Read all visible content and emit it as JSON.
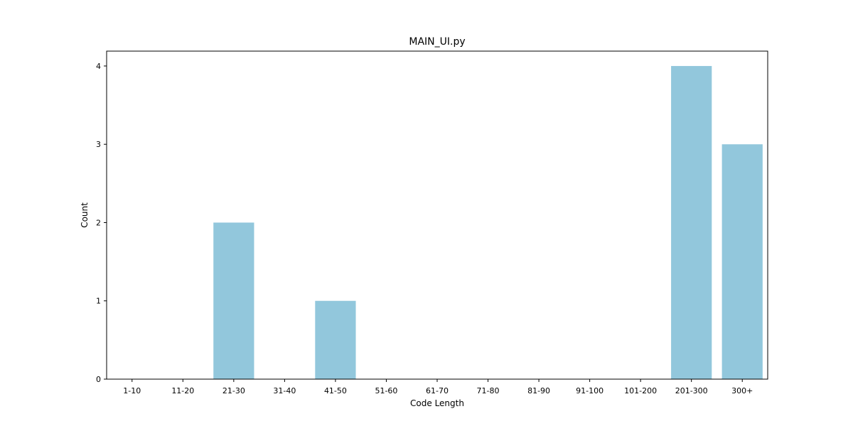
{
  "chart_data": {
    "type": "bar",
    "title": "MAIN_UI.py",
    "xlabel": "Code Length",
    "ylabel": "Count",
    "categories": [
      "1-10",
      "11-20",
      "21-30",
      "31-40",
      "41-50",
      "51-60",
      "61-70",
      "71-80",
      "81-90",
      "91-100",
      "101-200",
      "201-300",
      "300+"
    ],
    "values": [
      0,
      0,
      2,
      0,
      1,
      0,
      0,
      0,
      0,
      0,
      0,
      4,
      3
    ],
    "ylim": [
      0,
      4.19
    ],
    "yticks": [
      0,
      1,
      2,
      3,
      4
    ],
    "bar_color": "#92c7dc",
    "grid": false,
    "legend": "none"
  }
}
